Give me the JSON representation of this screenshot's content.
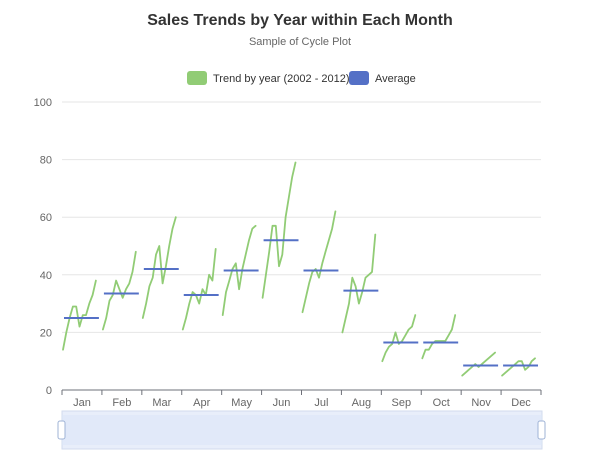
{
  "chart_data": {
    "type": "line",
    "title": "Sales Trends by Year within Each Month",
    "subtitle": "Sample of Cycle Plot",
    "xlabel": "",
    "ylabel": "",
    "ylim": [
      0,
      100
    ],
    "yticks": [
      0,
      20,
      40,
      60,
      80,
      100
    ],
    "categories": [
      "Jan",
      "Feb",
      "Mar",
      "Apr",
      "May",
      "Jun",
      "Jul",
      "Aug",
      "Sep",
      "Oct",
      "Nov",
      "Dec"
    ],
    "legend": {
      "position": "top",
      "items": [
        {
          "name": "Trend by year (2002 - 2012)",
          "color": "#91cc75"
        },
        {
          "name": "Average",
          "color": "#5470c6"
        }
      ]
    },
    "years": [
      "2002",
      "2003",
      "2004",
      "2005",
      "2006",
      "2007",
      "2008",
      "2009",
      "2010",
      "2011",
      "2012"
    ],
    "series": [
      {
        "name": "Trend by year (2002 - 2012)",
        "color": "#91cc75",
        "months": [
          {
            "month": "Jan",
            "values": [
              14,
              20,
              25,
              29,
              29,
              22,
              26,
              26,
              30,
              33,
              38
            ]
          },
          {
            "month": "Feb",
            "values": [
              21,
              25,
              31,
              33,
              38,
              35,
              32,
              35,
              37,
              41,
              48
            ]
          },
          {
            "month": "Mar",
            "values": [
              25,
              30,
              36,
              39,
              47,
              50,
              37,
              43,
              50,
              56,
              60
            ]
          },
          {
            "month": "Apr",
            "values": [
              21,
              25,
              30,
              34,
              33,
              30,
              35,
              33,
              40,
              38,
              49
            ]
          },
          {
            "month": "May",
            "values": [
              26,
              34,
              38,
              42,
              44,
              35,
              42,
              47,
              52,
              56,
              57
            ]
          },
          {
            "month": "Jun",
            "values": [
              32,
              40,
              48,
              57,
              57,
              43,
              47,
              60,
              67,
              74,
              79
            ]
          },
          {
            "month": "Jul",
            "values": [
              27,
              32,
              37,
              41,
              42,
              39,
              44,
              48,
              52,
              56,
              62
            ]
          },
          {
            "month": "Aug",
            "values": [
              20,
              25,
              30,
              39,
              36,
              30,
              34,
              39,
              40,
              41,
              54
            ]
          },
          {
            "month": "Sep",
            "values": [
              10,
              13,
              15,
              16,
              20,
              16,
              17,
              19,
              21,
              22,
              26
            ]
          },
          {
            "month": "Oct",
            "values": [
              11,
              14,
              14,
              16,
              17,
              17,
              17,
              17,
              19,
              21,
              26
            ]
          },
          {
            "month": "Nov",
            "values": [
              5,
              6,
              7,
              8,
              9,
              8,
              9,
              10,
              11,
              12,
              13
            ]
          },
          {
            "month": "Dec",
            "values": [
              5,
              6,
              7,
              8,
              9,
              10,
              10,
              7,
              8,
              10,
              11
            ]
          }
        ]
      },
      {
        "name": "Average",
        "color": "#5470c6",
        "values": [
          25,
          33.5,
          42,
          33,
          41.5,
          52,
          41.5,
          34.5,
          16.5,
          16.5,
          8.5,
          8.5
        ]
      }
    ],
    "grid": true
  },
  "data_zoom": {
    "range": [
      0,
      100
    ]
  }
}
